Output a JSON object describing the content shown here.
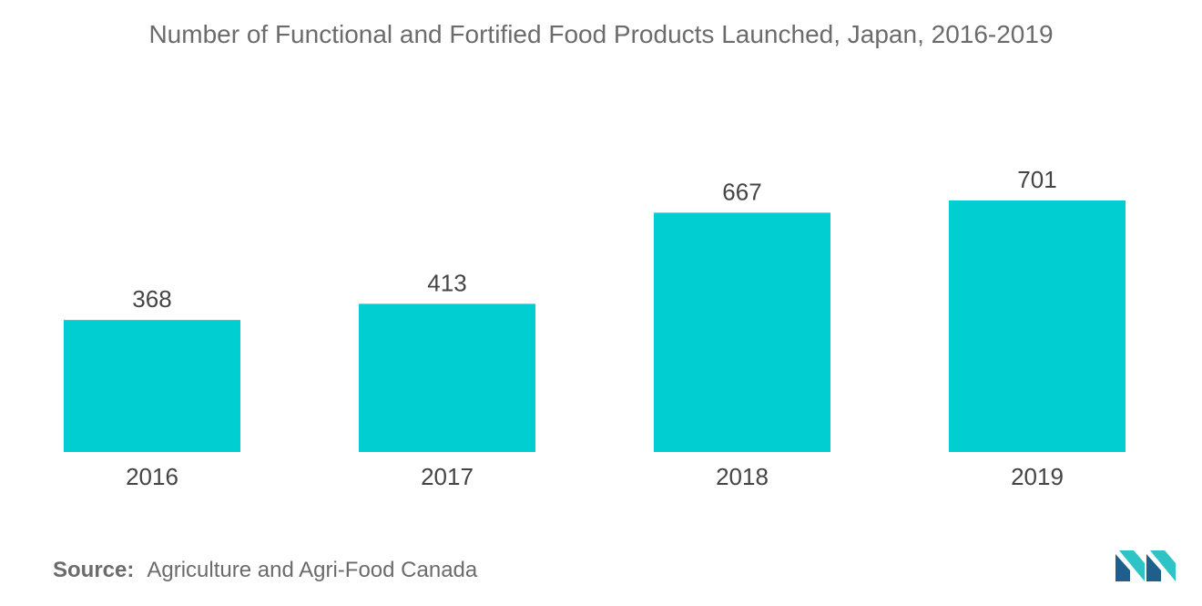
{
  "chart_data": {
    "type": "bar",
    "title": "Number of Functional and Fortified Food Products Launched, Japan, 2016-2019",
    "categories": [
      "2016",
      "2017",
      "2018",
      "2019"
    ],
    "values": [
      368,
      413,
      667,
      701
    ],
    "value_labels": [
      "368",
      "413",
      "667",
      "701"
    ],
    "xlabel": "",
    "ylabel": "",
    "ylim": [
      0,
      701
    ],
    "grid": false,
    "legend": "none",
    "bar_color": "#00CED1"
  },
  "source": {
    "label": "Source:",
    "text": "Agriculture and Agri-Food Canada"
  },
  "colors": {
    "bar": "#00CED1",
    "text": "#6b6b6b",
    "logo_dark": "#1e5f8c",
    "logo_light": "#2ec4c6"
  },
  "logo": {
    "icon": "mordor-intelligence-logo-icon"
  }
}
